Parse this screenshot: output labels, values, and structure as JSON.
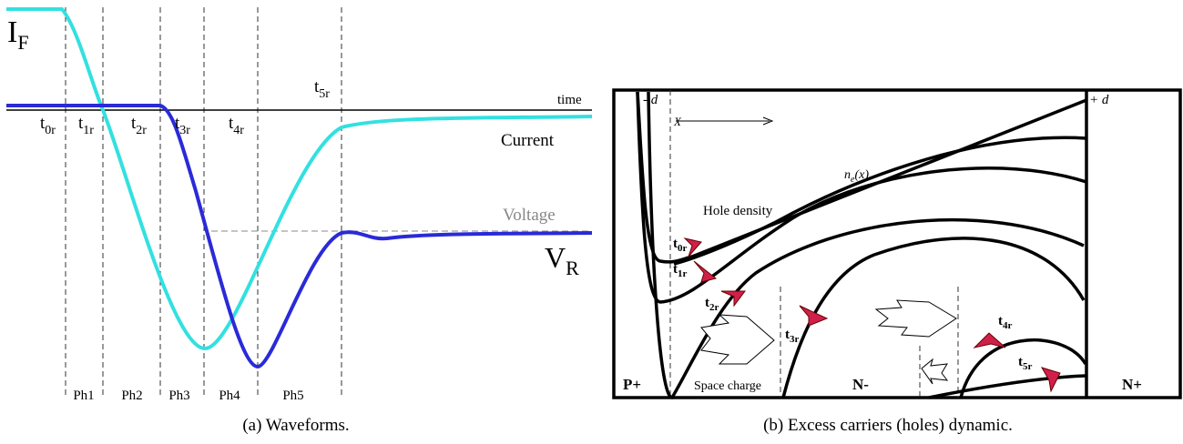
{
  "panel_a": {
    "y_labels": {
      "current_base": "I",
      "current_sub": "F",
      "voltage_base": "V",
      "voltage_sub": "R"
    },
    "axis_label": "time",
    "time_marks": [
      {
        "base": "t",
        "sub": "0r"
      },
      {
        "base": "t",
        "sub": "1r"
      },
      {
        "base": "t",
        "sub": "2r"
      },
      {
        "base": "t",
        "sub": "3r"
      },
      {
        "base": "t",
        "sub": "4r"
      },
      {
        "base": "t",
        "sub": "5r"
      }
    ],
    "curve_labels": {
      "current": "Current",
      "voltage": "Voltage"
    },
    "phases": [
      "Ph1",
      "Ph2",
      "Ph3",
      "Ph4",
      "Ph5"
    ],
    "caption": "(a) Waveforms."
  },
  "panel_b": {
    "edge_labels": {
      "minus_d": "- d",
      "x": "X",
      "plus_d": "+ d"
    },
    "electron_density": {
      "base": "n",
      "sub": "e",
      "suffix": "(x)"
    },
    "hole_density": "Hole density",
    "time_marks": [
      {
        "base": "t",
        "sub": "0r"
      },
      {
        "base": "t",
        "sub": "1r"
      },
      {
        "base": "t",
        "sub": "2r"
      },
      {
        "base": "t",
        "sub": "3r"
      },
      {
        "base": "t",
        "sub": "4r"
      },
      {
        "base": "t",
        "sub": "5r"
      }
    ],
    "regions": {
      "p_plus": "P+",
      "space_charge": "Space charge",
      "n_minus": "N-",
      "n_plus": "N+"
    },
    "caption": "(b) Excess carriers (holes) dynamic."
  }
}
